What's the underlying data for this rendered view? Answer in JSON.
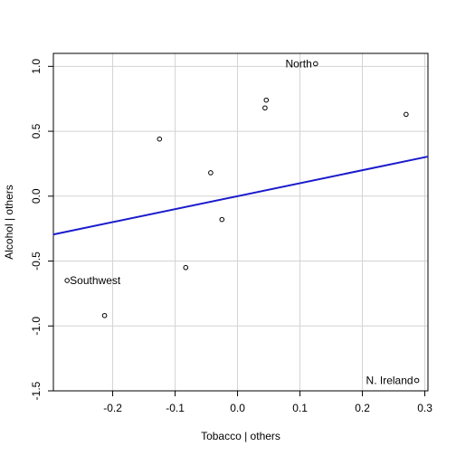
{
  "chart_data": {
    "type": "scatter",
    "xlabel": "Tobacco | others",
    "ylabel": "Alcohol | others",
    "xlim": [
      -0.295,
      0.305
    ],
    "ylim": [
      -1.5,
      1.1
    ],
    "x_ticks": [
      -0.2,
      -0.1,
      0.0,
      0.1,
      0.2,
      0.3
    ],
    "x_tick_labels": [
      "-0.2",
      "-0.1",
      "0.0",
      "0.1",
      "0.2",
      "0.3"
    ],
    "y_ticks": [
      -1.5,
      -1.0,
      -0.5,
      0.0,
      0.5,
      1.0
    ],
    "y_tick_labels": [
      "-1.5",
      "-1.0",
      "-0.5",
      "0.0",
      "0.5",
      "1.0"
    ],
    "grid": true,
    "points": [
      {
        "x": 0.125,
        "y": 1.02,
        "label": "North"
      },
      {
        "x": 0.046,
        "y": 0.74,
        "label": ""
      },
      {
        "x": 0.044,
        "y": 0.68,
        "label": ""
      },
      {
        "x": 0.27,
        "y": 0.63,
        "label": ""
      },
      {
        "x": -0.125,
        "y": 0.44,
        "label": ""
      },
      {
        "x": -0.043,
        "y": 0.18,
        "label": ""
      },
      {
        "x": -0.025,
        "y": -0.18,
        "label": ""
      },
      {
        "x": -0.083,
        "y": -0.55,
        "label": ""
      },
      {
        "x": -0.273,
        "y": -0.65,
        "label": "Southwest"
      },
      {
        "x": -0.213,
        "y": -0.92,
        "label": ""
      },
      {
        "x": 0.287,
        "y": -1.42,
        "label": "N. Ireland"
      }
    ],
    "regression_line": {
      "intercept": 0.0,
      "slope": 1.0
    }
  },
  "colors": {
    "grid": "#d3d3d3",
    "line": "#1a1acd",
    "points": "#000000"
  }
}
